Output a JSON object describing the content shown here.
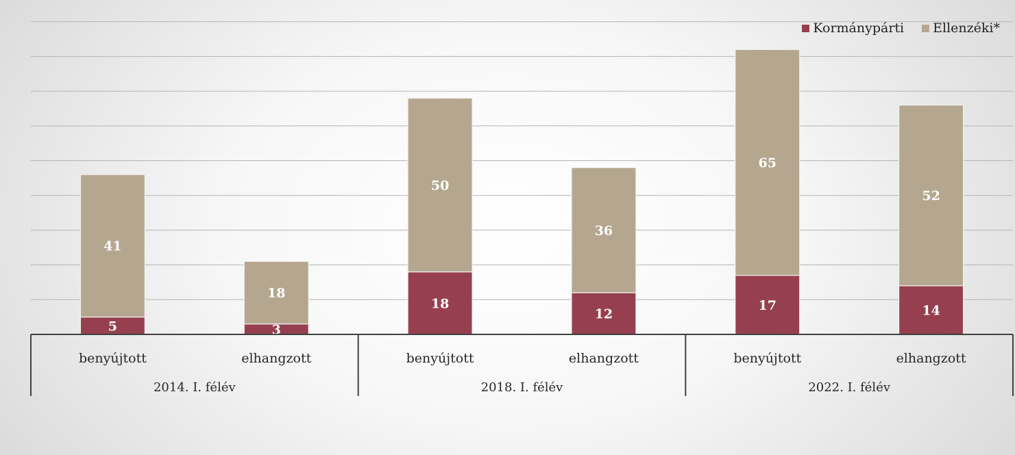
{
  "chart_data": {
    "type": "bar",
    "stacked": true,
    "groups": [
      "2014. I. félév",
      "2018. I. félév",
      "2022. I. félév"
    ],
    "categories": [
      "benyújtott",
      "elhangzott",
      "benyújtott",
      "elhangzott",
      "benyújtott",
      "elhangzott"
    ],
    "series": [
      {
        "name": "Kormánypárti",
        "color": "#96404f",
        "values": [
          5,
          3,
          18,
          12,
          17,
          14
        ]
      },
      {
        "name": "Ellenzéki*",
        "color": "#b5a78f",
        "values": [
          41,
          18,
          50,
          36,
          65,
          52
        ]
      }
    ],
    "ylim": [
      0,
      90
    ],
    "grid": true,
    "legend_position": "top-right",
    "data_labels": true
  }
}
